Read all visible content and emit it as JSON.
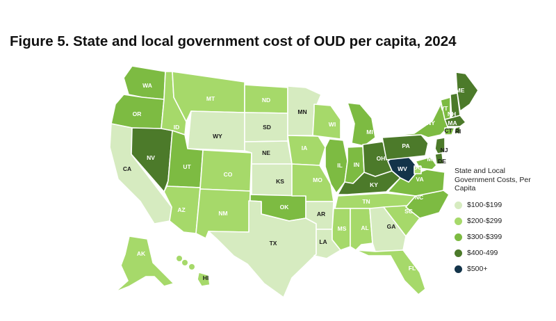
{
  "title": "Figure 5. State and local government cost of OUD per capita, 2024",
  "legend": {
    "title": "State and Local Government Costs, Per Capita",
    "items": [
      {
        "label": "$100-$199",
        "color": "#d6ebc0"
      },
      {
        "label": "$200-$299",
        "color": "#a6d96a"
      },
      {
        "label": "$300-$399",
        "color": "#7dbb42"
      },
      {
        "label": "$400-499",
        "color": "#4c7a2a"
      },
      {
        "label": "$500+",
        "color": "#13344a"
      }
    ]
  },
  "map_data": {
    "type": "choropleth",
    "bins": [
      "$100-$199",
      "$200-$299",
      "$300-$399",
      "$400-499",
      "$500+"
    ],
    "states": [
      {
        "abbr": "WA",
        "bin": 2
      },
      {
        "abbr": "OR",
        "bin": 2
      },
      {
        "abbr": "CA",
        "bin": 0
      },
      {
        "abbr": "NV",
        "bin": 3
      },
      {
        "abbr": "ID",
        "bin": 1
      },
      {
        "abbr": "MT",
        "bin": 1
      },
      {
        "abbr": "WY",
        "bin": 0
      },
      {
        "abbr": "UT",
        "bin": 2
      },
      {
        "abbr": "AZ",
        "bin": 1
      },
      {
        "abbr": "CO",
        "bin": 1
      },
      {
        "abbr": "NM",
        "bin": 1
      },
      {
        "abbr": "ND",
        "bin": 1
      },
      {
        "abbr": "SD",
        "bin": 0
      },
      {
        "abbr": "NE",
        "bin": 0
      },
      {
        "abbr": "KS",
        "bin": 0
      },
      {
        "abbr": "OK",
        "bin": 2
      },
      {
        "abbr": "TX",
        "bin": 0
      },
      {
        "abbr": "MN",
        "bin": 0
      },
      {
        "abbr": "IA",
        "bin": 1
      },
      {
        "abbr": "MO",
        "bin": 1
      },
      {
        "abbr": "AR",
        "bin": 0
      },
      {
        "abbr": "LA",
        "bin": 0
      },
      {
        "abbr": "WI",
        "bin": 1
      },
      {
        "abbr": "IL",
        "bin": 2
      },
      {
        "abbr": "MI",
        "bin": 2
      },
      {
        "abbr": "IN",
        "bin": 2
      },
      {
        "abbr": "OH",
        "bin": 3
      },
      {
        "abbr": "KY",
        "bin": 3
      },
      {
        "abbr": "TN",
        "bin": 1
      },
      {
        "abbr": "MS",
        "bin": 1
      },
      {
        "abbr": "AL",
        "bin": 1
      },
      {
        "abbr": "GA",
        "bin": 0
      },
      {
        "abbr": "FL",
        "bin": 1
      },
      {
        "abbr": "SC",
        "bin": 1
      },
      {
        "abbr": "NC",
        "bin": 2
      },
      {
        "abbr": "VA",
        "bin": 2
      },
      {
        "abbr": "WV",
        "bin": 4
      },
      {
        "abbr": "PA",
        "bin": 3
      },
      {
        "abbr": "NY",
        "bin": 2
      },
      {
        "abbr": "VT",
        "bin": 2
      },
      {
        "abbr": "NH",
        "bin": 3
      },
      {
        "abbr": "ME",
        "bin": 3
      },
      {
        "abbr": "MA",
        "bin": 3
      },
      {
        "abbr": "CT",
        "bin": 2
      },
      {
        "abbr": "RI",
        "bin": 3
      },
      {
        "abbr": "NJ",
        "bin": 3
      },
      {
        "abbr": "DE",
        "bin": 3
      },
      {
        "abbr": "MD",
        "bin": 2
      },
      {
        "abbr": "DC",
        "bin": 1
      },
      {
        "abbr": "AK",
        "bin": 1
      },
      {
        "abbr": "HI",
        "bin": 1
      }
    ]
  }
}
